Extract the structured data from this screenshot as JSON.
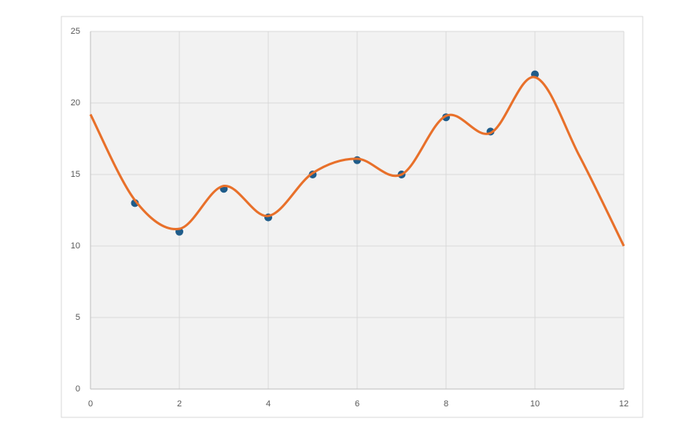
{
  "chart_data": {
    "type": "scatter",
    "xlim": [
      0,
      12
    ],
    "xticks": [
      0,
      2,
      4,
      6,
      8,
      10,
      12
    ],
    "ylim": [
      0,
      25
    ],
    "yticks": [
      0,
      5,
      10,
      15,
      20,
      25
    ],
    "grid": true,
    "series": [
      {
        "style": "markers",
        "color": "#1f5c8a",
        "x": [
          1,
          2,
          3,
          4,
          5,
          6,
          7,
          8,
          9,
          10
        ],
        "values": [
          13,
          11,
          14,
          12,
          15,
          16,
          15,
          19,
          18,
          22
        ]
      },
      {
        "style": "smooth-line",
        "color": "#e8702a",
        "x": [
          0,
          1,
          2,
          3,
          4,
          5,
          6,
          7,
          8,
          9,
          10,
          11,
          12
        ],
        "values": [
          19.2,
          13.2,
          11.2,
          14.2,
          12.1,
          15.1,
          16.1,
          15.0,
          19.1,
          17.9,
          21.8,
          16.3,
          10
        ]
      }
    ]
  }
}
